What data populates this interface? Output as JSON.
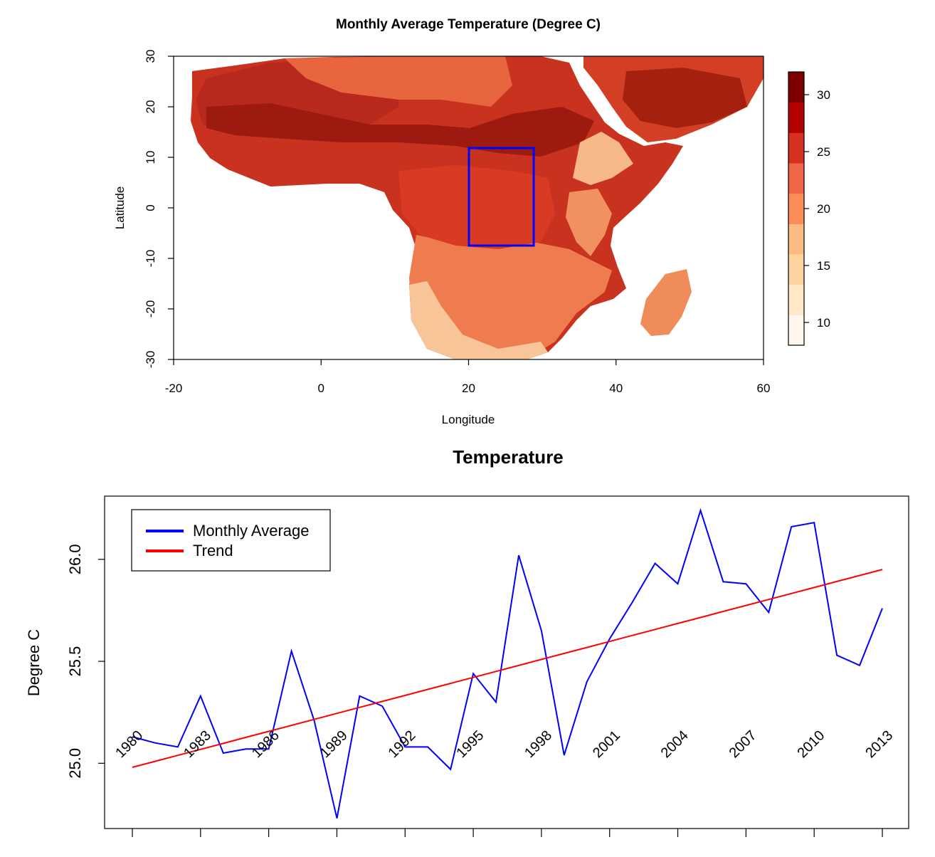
{
  "chart_data": [
    {
      "type": "heatmap",
      "title": "Monthly Average Temperature (Degree C)",
      "xlabel": "Longitude",
      "ylabel": "Latitude",
      "xlim": [
        -20,
        60
      ],
      "ylim": [
        -30,
        30
      ],
      "x_ticks": [
        "-20",
        "0",
        "20",
        "40",
        "60"
      ],
      "y_ticks": [
        "-30",
        "-20",
        "-10",
        "0",
        "10",
        "20",
        "30"
      ],
      "colorbar": {
        "range": [
          8,
          32
        ],
        "ticks": [
          "10",
          "15",
          "20",
          "25",
          "30"
        ],
        "colors": [
          "#fff7ec",
          "#fee8c8",
          "#fdd49e",
          "#fdbb84",
          "#fc8d59",
          "#ef6548",
          "#d7301f",
          "#b30000",
          "#7f0000"
        ]
      },
      "highlight_box": {
        "lon": [
          20,
          29
        ],
        "lat": [
          -7.5,
          12
        ],
        "color": "#0000ff"
      }
    },
    {
      "type": "line",
      "title": "Temperature",
      "xlabel": "",
      "ylabel": "Degree C",
      "x": [
        1980,
        1981,
        1982,
        1983,
        1984,
        1985,
        1986,
        1987,
        1988,
        1989,
        1990,
        1991,
        1992,
        1993,
        1994,
        1995,
        1996,
        1997,
        1998,
        1999,
        2000,
        2001,
        2002,
        2003,
        2004,
        2005,
        2006,
        2007,
        2008,
        2009,
        2010,
        2011,
        2012,
        2013
      ],
      "x_tick_labels": [
        "1980",
        "1983",
        "1986",
        "1989",
        "1992",
        "1995",
        "1998",
        "2001",
        "2004",
        "2007",
        "2010",
        "2013"
      ],
      "y_ticks": [
        "25.0",
        "25.5",
        "26.0"
      ],
      "ylim": [
        24.68,
        26.31
      ],
      "series": [
        {
          "name": "Monthly Average",
          "color": "#0000ff",
          "values": [
            25.13,
            25.1,
            25.08,
            25.33,
            25.05,
            25.07,
            25.07,
            25.55,
            25.21,
            24.73,
            25.33,
            25.28,
            25.08,
            25.08,
            24.97,
            25.44,
            25.3,
            26.02,
            25.65,
            25.04,
            25.4,
            25.61,
            25.79,
            25.98,
            25.88,
            26.24,
            25.89,
            25.88,
            25.74,
            26.16,
            26.18,
            25.53,
            25.48,
            25.76
          ]
        },
        {
          "name": "Trend",
          "color": "#ff0000",
          "values": [
            24.98,
            25.0094,
            25.0388,
            25.0682,
            25.0976,
            25.127,
            25.1564,
            25.1858,
            25.2152,
            25.2446,
            25.274,
            25.3034,
            25.3328,
            25.3622,
            25.3916,
            25.421,
            25.4504,
            25.4798,
            25.5092,
            25.5386,
            25.568,
            25.5974,
            25.6268,
            25.6562,
            25.6856,
            25.715,
            25.7444,
            25.7738,
            25.8032,
            25.8326,
            25.862,
            25.8914,
            25.9208,
            25.9502
          ]
        }
      ],
      "legend": {
        "placement": "top-left",
        "entries": [
          "Monthly Average",
          "Trend"
        ]
      }
    }
  ]
}
